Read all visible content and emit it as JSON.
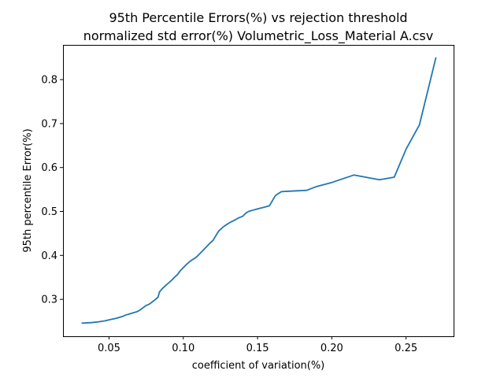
{
  "chart_data": {
    "type": "line",
    "title_lines": [
      "95th Percentile Errors(%) vs rejection threshold",
      "normalized std error(%) Volumetric_Loss_Material A.csv"
    ],
    "xlabel": "coefficient of variation(%)",
    "ylabel": "95th percentile Error(%)",
    "xlim": [
      0.019,
      0.282
    ],
    "ylim": [
      0.216,
      0.879
    ],
    "xticks": [
      0.05,
      0.1,
      0.15,
      0.2,
      0.25
    ],
    "xtick_labels": [
      "0.05",
      "0.10",
      "0.15",
      "0.20",
      "0.25"
    ],
    "yticks": [
      0.3,
      0.4,
      0.5,
      0.6,
      0.7,
      0.8
    ],
    "ytick_labels": [
      "0.3",
      "0.4",
      "0.5",
      "0.6",
      "0.7",
      "0.8"
    ],
    "grid": false,
    "color": "#1f77b4",
    "series": [
      {
        "x": [
          0.032,
          0.038,
          0.043,
          0.047,
          0.051,
          0.055,
          0.059,
          0.061,
          0.064,
          0.066,
          0.069,
          0.071,
          0.073,
          0.075,
          0.077,
          0.079,
          0.081,
          0.083,
          0.084,
          0.086,
          0.088,
          0.09,
          0.092,
          0.094,
          0.096,
          0.098,
          0.1,
          0.102,
          0.104,
          0.106,
          0.108,
          0.11,
          0.112,
          0.114,
          0.116,
          0.118,
          0.12,
          0.123,
          0.124,
          0.127,
          0.13,
          0.132,
          0.135,
          0.137,
          0.14,
          0.142,
          0.144,
          0.147,
          0.15,
          0.155,
          0.158,
          0.162,
          0.166,
          0.171,
          0.183,
          0.19,
          0.2,
          0.215,
          0.232,
          0.242,
          0.25,
          0.259,
          0.27
        ],
        "y": [
          0.246,
          0.247,
          0.249,
          0.251,
          0.254,
          0.257,
          0.261,
          0.264,
          0.267,
          0.269,
          0.272,
          0.276,
          0.281,
          0.286,
          0.289,
          0.294,
          0.299,
          0.305,
          0.317,
          0.325,
          0.331,
          0.337,
          0.343,
          0.35,
          0.356,
          0.365,
          0.372,
          0.379,
          0.385,
          0.39,
          0.394,
          0.4,
          0.407,
          0.414,
          0.421,
          0.428,
          0.434,
          0.451,
          0.456,
          0.465,
          0.472,
          0.476,
          0.481,
          0.485,
          0.489,
          0.496,
          0.5,
          0.503,
          0.506,
          0.51,
          0.513,
          0.536,
          0.545,
          0.546,
          0.548,
          0.557,
          0.566,
          0.583,
          0.572,
          0.578,
          0.642,
          0.697,
          0.849
        ]
      }
    ]
  }
}
